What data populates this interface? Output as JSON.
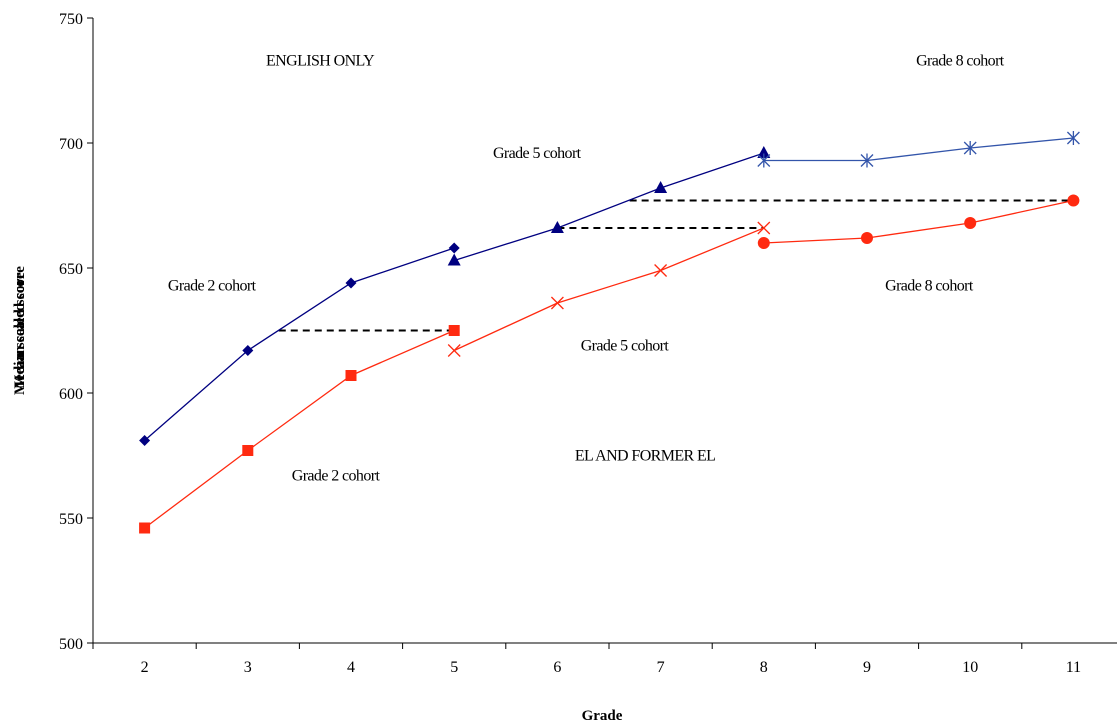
{
  "chart_data": {
    "type": "line",
    "title": "",
    "xlabel": "Grade",
    "ylabel": "Mean scaled score",
    "ylabel_overprint": [
      "Mean scaled score",
      "Median scaled score"
    ],
    "categories": [
      "2",
      "3",
      "4",
      "5",
      "6",
      "7",
      "8",
      "9",
      "10",
      "11"
    ],
    "ylim": [
      500,
      750
    ],
    "yticks": [
      500,
      550,
      600,
      650,
      700,
      750
    ],
    "grid": false,
    "legend": "none",
    "series": [
      {
        "group": "english_only",
        "cohort": "grade2",
        "color": "#000080",
        "marker": "diamond",
        "points": [
          {
            "x": "2",
            "y": 581
          },
          {
            "x": "3",
            "y": 617
          },
          {
            "x": "4",
            "y": 644
          },
          {
            "x": "5",
            "y": 658
          }
        ]
      },
      {
        "group": "english_only",
        "cohort": "grade5",
        "color": "#000080",
        "marker": "triangle",
        "points": [
          {
            "x": "5",
            "y": 653
          },
          {
            "x": "6",
            "y": 666
          },
          {
            "x": "7",
            "y": 682
          },
          {
            "x": "8",
            "y": 696
          }
        ]
      },
      {
        "group": "english_only",
        "cohort": "grade8",
        "color": "#3355aa",
        "marker": "asterisk",
        "points": [
          {
            "x": "8",
            "y": 693
          },
          {
            "x": "9",
            "y": 693
          },
          {
            "x": "10",
            "y": 698
          },
          {
            "x": "11",
            "y": 702
          }
        ]
      },
      {
        "group": "el_and_former_el",
        "cohort": "grade2",
        "color": "#ff2a10",
        "marker": "square",
        "points": [
          {
            "x": "2",
            "y": 546
          },
          {
            "x": "3",
            "y": 577
          },
          {
            "x": "4",
            "y": 607
          },
          {
            "x": "5",
            "y": 625
          }
        ]
      },
      {
        "group": "el_and_former_el",
        "cohort": "grade5",
        "color": "#ff2a10",
        "marker": "x",
        "points": [
          {
            "x": "5",
            "y": 617
          },
          {
            "x": "6",
            "y": 636
          },
          {
            "x": "7",
            "y": 649
          },
          {
            "x": "8",
            "y": 666
          }
        ]
      },
      {
        "group": "el_and_former_el",
        "cohort": "grade8",
        "color": "#ff2a10",
        "marker": "circle",
        "points": [
          {
            "x": "8",
            "y": 660
          },
          {
            "x": "9",
            "y": 662
          },
          {
            "x": "10",
            "y": 668
          },
          {
            "x": "11",
            "y": 677
          }
        ]
      }
    ],
    "reference_lines": [
      {
        "style": "dashed",
        "color": "#000000",
        "from_x": 3.3,
        "to_x": 5,
        "y": 625
      },
      {
        "style": "dashed",
        "color": "#000000",
        "from_x": 6,
        "to_x": 8,
        "y": 666
      },
      {
        "style": "dashed",
        "color": "#000000",
        "from_x": 6.7,
        "to_x": 11,
        "y": 677
      }
    ],
    "annotations": [
      {
        "text": "ENGLISH ONLY",
        "x": 3.7,
        "y": 733
      },
      {
        "text": "Grade 8 cohort",
        "x": 9.9,
        "y": 733
      },
      {
        "text": "Grade 5 cohort",
        "x": 5.8,
        "y": 696
      },
      {
        "text": "Grade 2 cohort",
        "x": 2.65,
        "y": 643
      },
      {
        "text": "Grade 8 cohort",
        "x": 9.6,
        "y": 643
      },
      {
        "text": "Grade 5 cohort",
        "x": 6.65,
        "y": 619
      },
      {
        "text": "EL AND FORMER EL",
        "x": 6.85,
        "y": 575
      },
      {
        "text": "Grade 2 cohort",
        "x": 3.85,
        "y": 567
      }
    ]
  }
}
